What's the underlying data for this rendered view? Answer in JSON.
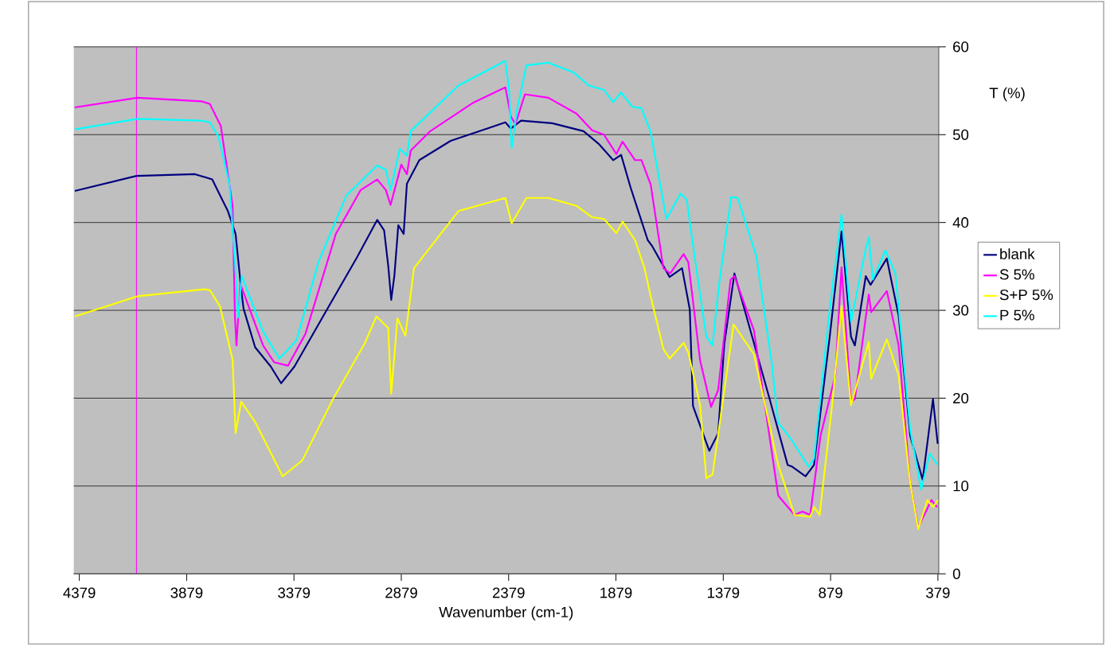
{
  "chart_data": {
    "type": "line",
    "xlabel": "Wavenumber (cm-1)",
    "ylabel": "T (%)",
    "xlim": [
      4405,
      375
    ],
    "xticks": [
      4379,
      3879,
      3379,
      2879,
      2379,
      1879,
      1379,
      879,
      379
    ],
    "ylim": [
      0,
      60
    ],
    "yticks": [
      0,
      10,
      20,
      30,
      40,
      50,
      60
    ],
    "grid": "y",
    "legend": "right",
    "ref_lines": [
      {
        "axis": "x",
        "value": 4113,
        "color": "#ff00ff"
      }
    ],
    "series": [
      {
        "name": "blank",
        "color": "#000080",
        "x": [
          4400,
          4113,
          3840,
          3760,
          3687,
          3651,
          3625,
          3614,
          3560,
          3487,
          3439,
          3377,
          3232,
          3086,
          2991,
          2959,
          2940,
          2926,
          2911,
          2893,
          2868,
          2853,
          2795,
          2649,
          2467,
          2394,
          2369,
          2321,
          2176,
          2030,
          1957,
          1892,
          1855,
          1811,
          1731,
          1710,
          1629,
          1571,
          1535,
          1520,
          1444,
          1403,
          1374,
          1327,
          1163,
          1079,
          1058,
          996,
          956,
          883,
          828,
          784,
          766,
          715,
          693,
          617,
          562,
          508,
          450,
          402,
          380
        ],
        "values": [
          43.6,
          45.3,
          45.5,
          44.9,
          41.3,
          38.7,
          32.4,
          30.2,
          25.8,
          23.6,
          21.7,
          23.6,
          29.8,
          36,
          40.3,
          39.1,
          35.1,
          31.2,
          34,
          39.7,
          38.7,
          44.4,
          47.1,
          49.3,
          50.8,
          51.4,
          50.7,
          51.6,
          51.3,
          50.4,
          48.9,
          47.1,
          47.7,
          44,
          38,
          37.3,
          33.8,
          34.8,
          30.1,
          19.1,
          14,
          16,
          26.2,
          34.2,
          19.9,
          12.4,
          12.2,
          11.1,
          12.4,
          27,
          39,
          27,
          26,
          33.9,
          32.9,
          35.9,
          29.4,
          15.7,
          10.7,
          19.9,
          14.8
        ]
      },
      {
        "name": "S 5%",
        "color": "#ff00ff",
        "x": [
          4400,
          4109,
          3811,
          3771,
          3720,
          3665,
          3654,
          3647,
          3629,
          3523,
          3472,
          3407,
          3326,
          3184,
          3068,
          2991,
          2951,
          2929,
          2879,
          2853,
          2835,
          2744,
          2547,
          2394,
          2369,
          2347,
          2303,
          2194,
          2063,
          1990,
          1935,
          1877,
          1848,
          1790,
          1760,
          1717,
          1658,
          1626,
          1564,
          1542,
          1487,
          1436,
          1403,
          1345,
          1327,
          1236,
          1123,
          1047,
          1010,
          974,
          926,
          857,
          828,
          784,
          766,
          701,
          690,
          617,
          562,
          508,
          471,
          409,
          383
        ],
        "values": [
          53.1,
          54.2,
          53.8,
          53.5,
          51,
          41.9,
          29.2,
          26,
          33,
          26,
          24.1,
          23.7,
          27.3,
          38.7,
          43.7,
          44.9,
          43.7,
          42,
          46.6,
          45.5,
          48.2,
          50.4,
          53.6,
          55.4,
          52.1,
          51.2,
          54.6,
          54.2,
          52.4,
          50.5,
          50,
          47.8,
          49.2,
          47.1,
          47.1,
          44.3,
          34.8,
          34.2,
          36.4,
          35.5,
          24.3,
          19,
          20.9,
          33.5,
          33.9,
          27.7,
          8.9,
          6.7,
          7.1,
          6.7,
          15.7,
          22.6,
          34.9,
          19.6,
          19.9,
          31.8,
          29.8,
          32.2,
          26,
          10.3,
          5.3,
          8.4,
          7.6
        ]
      },
      {
        "name": "S+P 5%",
        "color": "#ffff00",
        "x": [
          4400,
          4109,
          3796,
          3771,
          3723,
          3665,
          3651,
          3625,
          3560,
          3432,
          3341,
          3195,
          3050,
          2995,
          2940,
          2926,
          2897,
          2860,
          2820,
          2613,
          2394,
          2365,
          2296,
          2194,
          2063,
          1990,
          1935,
          1877,
          1848,
          1790,
          1746,
          1717,
          1658,
          1629,
          1564,
          1542,
          1487,
          1458,
          1429,
          1331,
          1236,
          1123,
          1047,
          974,
          956,
          930,
          872,
          828,
          784,
          701,
          690,
          617,
          562,
          508,
          471,
          428,
          402,
          379
        ],
        "values": [
          29.3,
          31.6,
          32.4,
          32.3,
          30.4,
          24.4,
          16,
          19.6,
          17.3,
          11.1,
          12.9,
          20,
          26.2,
          29.3,
          28,
          20.5,
          29.1,
          27.1,
          34.8,
          41.3,
          42.8,
          39.9,
          42.8,
          42.8,
          41.9,
          40.6,
          40.4,
          38.8,
          40.1,
          38,
          34.8,
          31.6,
          25.6,
          24.5,
          26.3,
          25.2,
          19.2,
          10.9,
          11.3,
          28.4,
          25,
          12.4,
          6.7,
          6.5,
          7.6,
          6.7,
          19.2,
          30.5,
          19.2,
          26.4,
          22.2,
          26.7,
          22.6,
          10.3,
          5.1,
          8.4,
          7.6,
          8.4
        ]
      },
      {
        "name": "P 5%",
        "color": "#00ffff",
        "x": [
          4400,
          4109,
          3811,
          3771,
          3731,
          3680,
          3654,
          3640,
          3622,
          3523,
          3447,
          3367,
          3265,
          3134,
          2991,
          2951,
          2929,
          2886,
          2853,
          2835,
          2613,
          2394,
          2376,
          2365,
          2340,
          2296,
          2194,
          2077,
          2005,
          1935,
          1892,
          1855,
          1804,
          1760,
          1717,
          1644,
          1578,
          1549,
          1513,
          1458,
          1429,
          1400,
          1342,
          1312,
          1225,
          1152,
          1123,
          1065,
          981,
          956,
          883,
          828,
          784,
          715,
          701,
          682,
          624,
          577,
          508,
          457,
          417,
          380
        ],
        "values": [
          50.6,
          51.8,
          51.6,
          51.4,
          49.8,
          44.4,
          35.5,
          29.2,
          33.9,
          27.6,
          24.5,
          26.6,
          35.5,
          43.1,
          46.5,
          46,
          43.7,
          48.4,
          47.6,
          50.4,
          55.6,
          58.4,
          54.9,
          48.5,
          52.8,
          57.9,
          58.2,
          57.1,
          55.6,
          55.1,
          53.7,
          54.8,
          53.2,
          53,
          50.3,
          40.4,
          43.3,
          42.6,
          36.2,
          27,
          26,
          32.7,
          42.9,
          42.8,
          36.2,
          23.8,
          17.2,
          15.4,
          12.2,
          13.1,
          30.1,
          40.9,
          28.7,
          37,
          38.3,
          33.5,
          36.8,
          34.2,
          16.4,
          9.6,
          13.7,
          12.4
        ]
      }
    ]
  }
}
